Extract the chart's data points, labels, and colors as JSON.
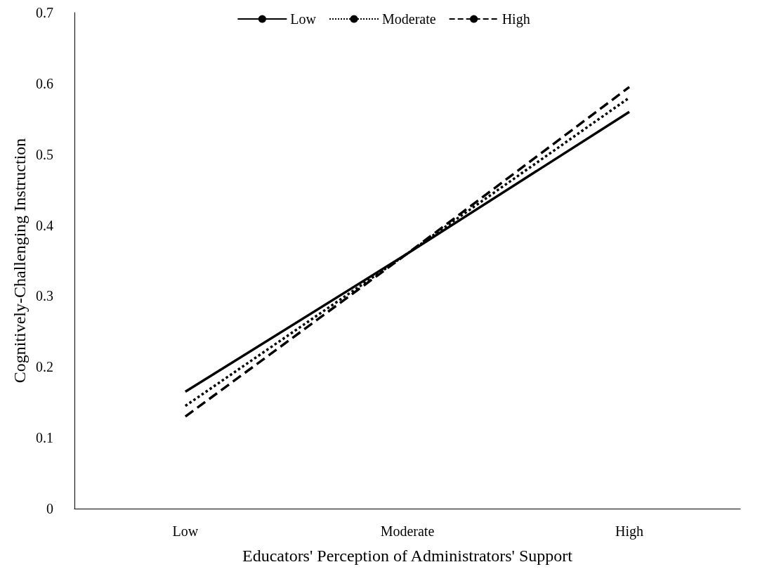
{
  "chart_data": {
    "type": "line",
    "xlabel": "Educators' Perception of Administrators' Support",
    "ylabel": "Cognitively-Challenging Instruction",
    "categories": [
      "Low",
      "Moderate",
      "High"
    ],
    "series": [
      {
        "name": "Low",
        "color": "#000000",
        "line_style": "solid",
        "values": [
          0.165,
          0.36,
          0.56
        ]
      },
      {
        "name": "Moderate",
        "color": "#000000",
        "line_style": "dotted",
        "values": [
          0.145,
          0.36,
          0.58
        ]
      },
      {
        "name": "High",
        "color": "#000000",
        "line_style": "dashed",
        "values": [
          0.13,
          0.36,
          0.595
        ]
      }
    ],
    "ylim": [
      0,
      0.7
    ],
    "yticks": [
      0,
      0.1,
      0.2,
      0.3,
      0.4,
      0.5,
      0.6,
      0.7
    ],
    "grid": false,
    "legend": "top",
    "marker": "none"
  }
}
